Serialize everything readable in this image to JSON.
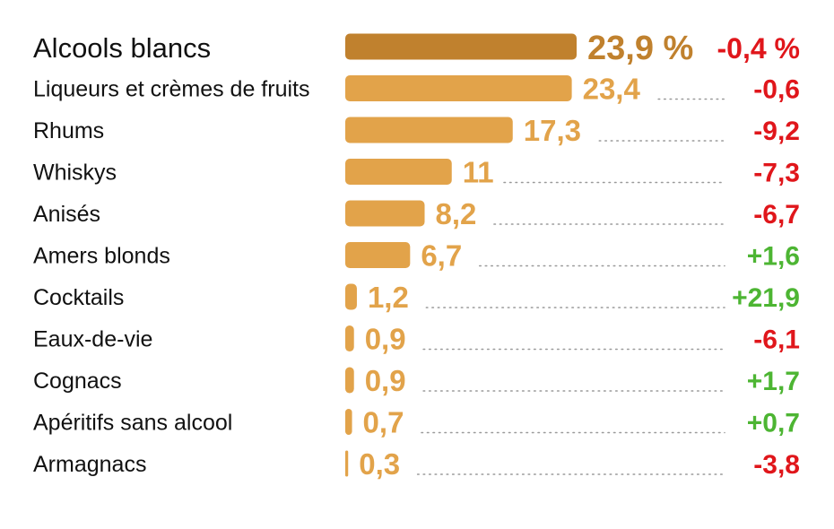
{
  "chart_data": {
    "type": "bar",
    "orientation": "horizontal",
    "categories": [
      "Alcools blancs",
      "Liqueurs et crèmes de fruits",
      "Rhums",
      "Whiskys",
      "Anisés",
      "Amers blonds",
      "Cocktails",
      "Eaux-de-vie",
      "Cognacs",
      "Apéritifs sans alcool",
      "Armagnacs"
    ],
    "values": [
      23.9,
      23.4,
      17.3,
      11,
      8.2,
      6.7,
      1.2,
      0.9,
      0.9,
      0.7,
      0.3
    ],
    "value_labels": [
      "23,9 %",
      "23,4",
      "17,3",
      "11",
      "8,2",
      "6,7",
      "1,2",
      "0,9",
      "0,9",
      "0,7",
      "0,3"
    ],
    "change_values": [
      -0.4,
      -0.6,
      -9.2,
      -7.3,
      -6.7,
      1.6,
      21.9,
      -6.1,
      1.7,
      0.7,
      -3.8
    ],
    "change_labels": [
      "-0,4 %",
      "-0,6",
      "-9,2",
      "-7,3",
      "-6,7",
      "+1,6",
      "+21,9",
      "-6,1",
      "+1,7",
      "+0,7",
      "-3,8"
    ],
    "colors": {
      "highlight_bar": "#C0812E",
      "bar": "#E2A34A",
      "negative": "#E0161B",
      "positive": "#4DB533",
      "leader": "#9A9A9A",
      "label": "#111111"
    }
  }
}
